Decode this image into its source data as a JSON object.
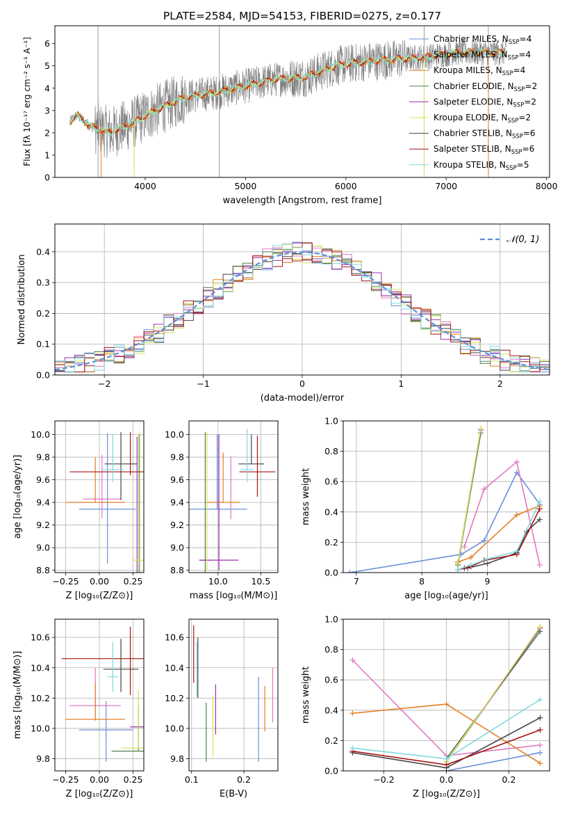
{
  "title": "PLATE=2584, MJD=54153, FIBERID=0275, z=0.177",
  "colors": {
    "data": "#808080",
    "chabrier_miles": "#6a8fd8",
    "salpeter_miles": "#e377c2",
    "kroupa_miles": "#e67e22",
    "chabrier_elodie": "#4c7f4c",
    "salpeter_elodie": "#9b2fae",
    "kroupa_elodie": "#d4e157",
    "chabrier_stelib": "#444444",
    "salpeter_stelib": "#a31515",
    "kroupa_stelib": "#80d8e0"
  },
  "legend_entries": [
    {
      "base": "Chabrier MILES, N",
      "sub": "SSP",
      "tail": "=4",
      "color": "#6a8fd8"
    },
    {
      "base": "Salpeter MILES, N",
      "sub": "SSP",
      "tail": "=4",
      "color": "#e377c2"
    },
    {
      "base": "Kroupa MILES, N",
      "sub": "SSP",
      "tail": "=4",
      "color": "#e67e22"
    },
    {
      "base": "Chabrier ELODIE, N",
      "sub": "SSP",
      "tail": "=2",
      "color": "#4c7f4c"
    },
    {
      "base": "Salpeter ELODIE, N",
      "sub": "SSP",
      "tail": "=2",
      "color": "#9b2fae"
    },
    {
      "base": "Kroupa ELODIE, N",
      "sub": "SSP",
      "tail": "=2",
      "color": "#d4e157"
    },
    {
      "base": "Chabrier STELIB, N",
      "sub": "SSP",
      "tail": "=6",
      "color": "#444444"
    },
    {
      "base": "Salpeter STELIB, N",
      "sub": "SSP",
      "tail": "=6",
      "color": "#a31515"
    },
    {
      "base": "Kroupa STELIB, N",
      "sub": "SSP",
      "tail": "=5",
      "color": "#80d8e0"
    }
  ],
  "chart_data": [
    {
      "id": "spectrum",
      "type": "line",
      "xlabel": "wavelength [Angstrom, rest frame]",
      "ylabel": "Flux [fλ 10⁻¹⁷ erg cm⁻² s⁻¹ A⁻¹]",
      "xlim": [
        3100,
        8030
      ],
      "ylim": [
        0,
        6.8
      ],
      "xticks": [
        4000,
        5000,
        6000,
        7000,
        8000
      ],
      "yticks": [
        0,
        1,
        2,
        3,
        4,
        5,
        6
      ],
      "continuum": {
        "x": [
          3250,
          3320,
          3450,
          3650,
          3900,
          4100,
          4400,
          4700,
          5000,
          5300,
          5600,
          5900,
          6200,
          6500,
          6800,
          7100,
          7400,
          7600
        ],
        "y": [
          2.5,
          2.8,
          2.3,
          2.0,
          2.5,
          3.0,
          3.6,
          3.8,
          4.1,
          4.4,
          4.5,
          5.0,
          5.2,
          5.3,
          5.4,
          5.6,
          5.6,
          5.6
        ]
      }
    },
    {
      "id": "residuals",
      "type": "histogram",
      "xlabel": "(data-model)/error",
      "ylabel": "Normed distribution",
      "xlim": [
        -2.5,
        2.5
      ],
      "ylim": [
        0,
        0.49
      ],
      "xticks": [
        -2,
        -1,
        0,
        1,
        2
      ],
      "yticks": [
        0.0,
        0.1,
        0.2,
        0.3,
        0.4
      ],
      "legend": "𝒩(0, 1)",
      "gaussian": {
        "mean": 0,
        "sigma": 1
      }
    },
    {
      "id": "z_age",
      "type": "errorbar",
      "xlabel": "Z [log₁₀(Z/Z⊙)]",
      "ylabel": "age  [log₁₀(age/yr)]",
      "xlim": [
        -0.33,
        0.33
      ],
      "ylim": [
        8.78,
        10.12
      ],
      "xticks": [
        -0.25,
        0.0,
        0.25
      ],
      "yticks": [
        8.8,
        9.0,
        9.2,
        9.4,
        9.6,
        9.8,
        10.0
      ],
      "points": [
        {
          "color": "#6a8fd8",
          "x": 0.06,
          "y": 9.34,
          "xerr": 0.21,
          "yerr": [
            0.48,
            0.67
          ]
        },
        {
          "color": "#e377c2",
          "x": 0.02,
          "y": 9.43,
          "xerr": 0.14,
          "yerr": [
            0.17,
            0.39
          ]
        },
        {
          "color": "#e67e22",
          "x": -0.03,
          "y": 9.4,
          "xerr": 0.22,
          "yerr": [
            0.0,
            0.4
          ]
        },
        {
          "color": "#4c7f4c",
          "x": 0.295,
          "y": 8.89,
          "xerr": 0.0,
          "yerr": [
            0.11,
            1.11
          ]
        },
        {
          "color": "#9b2fae",
          "x": 0.28,
          "y": 8.89,
          "xerr": 0.0,
          "yerr": [
            0.11,
            1.09
          ]
        },
        {
          "color": "#d4e157",
          "x": 0.3,
          "y": 8.89,
          "xerr": 0.05,
          "yerr": [
            0.11,
            1.13
          ]
        },
        {
          "color": "#444444",
          "x": 0.16,
          "y": 9.74,
          "xerr": 0.12,
          "yerr": [
            0.32,
            0.28
          ]
        },
        {
          "color": "#a31515",
          "x": 0.23,
          "y": 9.67,
          "xerr": 0.45,
          "yerr": [
            0.03,
            0.35
          ]
        },
        {
          "color": "#80d8e0",
          "x": 0.1,
          "y": 9.69,
          "xerr": 0.08,
          "yerr": [
            0.11,
            0.31
          ]
        }
      ]
    },
    {
      "id": "mass_age",
      "type": "errorbar",
      "xlabel": "mass [log₁₀(M/M⊙)]",
      "ylabel": "",
      "xlim": [
        9.66,
        10.7
      ],
      "ylim": [
        8.78,
        10.12
      ],
      "xticks": [
        10.0,
        10.5
      ],
      "yticks": [
        8.8,
        9.0,
        9.2,
        9.4,
        9.6,
        9.8,
        10.0
      ],
      "points": [
        {
          "color": "#6a8fd8",
          "x": 9.99,
          "y": 9.34,
          "xerr": 0.35,
          "yerr": [
            0.0,
            0.66
          ]
        },
        {
          "color": "#e377c2",
          "x": 10.15,
          "y": 9.43,
          "xerr": 0.0,
          "yerr": [
            0.18,
            0.38
          ]
        },
        {
          "color": "#e67e22",
          "x": 10.06,
          "y": 9.4,
          "xerr": 0.2,
          "yerr": [
            0.0,
            0.44
          ]
        },
        {
          "color": "#4c7f4c",
          "x": 9.85,
          "y": 8.89,
          "xerr": 0.07,
          "yerr": [
            0.11,
            1.13
          ]
        },
        {
          "color": "#9b2fae",
          "x": 10.01,
          "y": 8.89,
          "xerr": 0.23,
          "yerr": [
            0.09,
            1.11
          ]
        },
        {
          "color": "#d4e157",
          "x": 9.87,
          "y": 8.89,
          "xerr": 0.0,
          "yerr": [
            0.09,
            1.13
          ]
        },
        {
          "color": "#444444",
          "x": 10.39,
          "y": 9.74,
          "xerr": 0.15,
          "yerr": [
            0.0,
            0.26
          ]
        },
        {
          "color": "#a31515",
          "x": 10.46,
          "y": 9.67,
          "xerr": 0.21,
          "yerr": [
            0.22,
            0.32
          ]
        },
        {
          "color": "#80d8e0",
          "x": 10.34,
          "y": 9.69,
          "xerr": 0.08,
          "yerr": [
            0.11,
            0.36
          ]
        }
      ]
    },
    {
      "id": "age_weight",
      "type": "line",
      "xlabel": "age  [log₁₀(age/yr)]",
      "ylabel": "mass weight",
      "xlim": [
        6.8,
        9.95
      ],
      "ylim": [
        0,
        1.0
      ],
      "xticks": [
        7,
        8,
        9
      ],
      "yticks": [
        0.0,
        0.2,
        0.4,
        0.6,
        0.8,
        1.0
      ],
      "series": [
        {
          "color": "#6a8fd8",
          "x": [
            6.9,
            8.6,
            8.95,
            9.45,
            9.8
          ],
          "y": [
            0.0,
            0.12,
            0.21,
            0.66,
            0.45
          ]
        },
        {
          "color": "#e377c2",
          "x": [
            8.65,
            8.95,
            9.45,
            9.8
          ],
          "y": [
            0.17,
            0.55,
            0.73,
            0.05
          ]
        },
        {
          "color": "#e67e22",
          "x": [
            8.55,
            8.75,
            9.45,
            9.8
          ],
          "y": [
            0.07,
            0.1,
            0.38,
            0.44
          ]
        },
        {
          "color": "#4c7f4c",
          "x": [
            8.55,
            8.9
          ],
          "y": [
            0.05,
            0.92
          ]
        },
        {
          "color": "#9b2fae",
          "x": [
            8.55,
            8.9
          ],
          "y": [
            0.06,
            0.94
          ]
        },
        {
          "color": "#d4e157",
          "x": [
            8.55,
            8.9
          ],
          "y": [
            0.06,
            0.95
          ]
        },
        {
          "color": "#444444",
          "x": [
            8.55,
            8.7,
            9.0,
            9.45,
            9.6,
            9.8
          ],
          "y": [
            0.02,
            0.03,
            0.06,
            0.13,
            0.27,
            0.35
          ]
        },
        {
          "color": "#a31515",
          "x": [
            8.55,
            8.65,
            8.75,
            8.95,
            9.45,
            9.8
          ],
          "y": [
            0.02,
            0.03,
            0.04,
            0.08,
            0.12,
            0.42
          ]
        },
        {
          "color": "#80d8e0",
          "x": [
            8.55,
            8.75,
            9.0,
            9.45,
            9.8
          ],
          "y": [
            0.02,
            0.05,
            0.09,
            0.14,
            0.47
          ]
        }
      ]
    },
    {
      "id": "z_mass",
      "type": "errorbar",
      "xlabel": "Z [log₁₀(Z/Z⊙)]",
      "ylabel": "mass [log₁₀(M/M⊙)]",
      "xlim": [
        -0.33,
        0.33
      ],
      "ylim": [
        9.72,
        10.72
      ],
      "xticks": [
        -0.25,
        0.0,
        0.25
      ],
      "yticks": [
        9.8,
        10.0,
        10.2,
        10.4,
        10.6
      ],
      "points": [
        {
          "color": "#6a8fd8",
          "x": 0.05,
          "y": 9.99,
          "xerr": 0.2,
          "yerr": [
            0.21,
            0.19
          ]
        },
        {
          "color": "#e377c2",
          "x": -0.03,
          "y": 10.15,
          "xerr": 0.19,
          "yerr": [
            0.1,
            0.25
          ]
        },
        {
          "color": "#e67e22",
          "x": -0.03,
          "y": 10.06,
          "xerr": 0.22,
          "yerr": [
            0.0,
            0.24
          ]
        },
        {
          "color": "#4c7f4c",
          "x": 0.29,
          "y": 9.85,
          "xerr": 0.2,
          "yerr": [
            0.0,
            0.3
          ]
        },
        {
          "color": "#9b2fae",
          "x": 0.28,
          "y": 10.01,
          "xerr": 0.05,
          "yerr": [
            0.0,
            0.0
          ]
        },
        {
          "color": "#d4e157",
          "x": 0.29,
          "y": 9.87,
          "xerr": 0.13,
          "yerr": [
            0.0,
            0.38
          ]
        },
        {
          "color": "#444444",
          "x": 0.16,
          "y": 10.39,
          "xerr": 0.13,
          "yerr": [
            0.15,
            0.2
          ]
        },
        {
          "color": "#a31515",
          "x": 0.23,
          "y": 10.46,
          "xerr": 0.51,
          "yerr": [
            0.24,
            0.21
          ]
        },
        {
          "color": "#80d8e0",
          "x": 0.1,
          "y": 10.34,
          "xerr": 0.04,
          "yerr": [
            0.1,
            0.23
          ]
        }
      ]
    },
    {
      "id": "ebv_mass",
      "type": "errorbar",
      "xlabel": "E(B-V)",
      "ylabel": "",
      "xlim": [
        0.095,
        0.265
      ],
      "ylim": [
        9.72,
        10.72
      ],
      "xticks": [
        0.1,
        0.2
      ],
      "yticks": [
        9.8,
        10.0,
        10.2,
        10.4,
        10.6
      ],
      "points": [
        {
          "color": "#6a8fd8",
          "x": 0.228,
          "y": 10.0,
          "xerr": 0.0,
          "yerr": [
            0.22,
            0.34
          ]
        },
        {
          "color": "#e377c2",
          "x": 0.255,
          "y": 10.2,
          "xerr": 0.0,
          "yerr": [
            0.16,
            0.2
          ]
        },
        {
          "color": "#e67e22",
          "x": 0.24,
          "y": 10.15,
          "xerr": 0.0,
          "yerr": [
            0.17,
            0.13
          ]
        },
        {
          "color": "#4c7f4c",
          "x": 0.128,
          "y": 9.97,
          "xerr": 0.0,
          "yerr": [
            0.19,
            0.2
          ]
        },
        {
          "color": "#9b2fae",
          "x": 0.146,
          "y": 10.12,
          "xerr": 0.0,
          "yerr": [
            0.16,
            0.17
          ]
        },
        {
          "color": "#d4e157",
          "x": 0.141,
          "y": 10.01,
          "xerr": 0.0,
          "yerr": [
            0.2,
            0.21
          ]
        },
        {
          "color": "#444444",
          "x": 0.112,
          "y": 10.4,
          "xerr": 0.0,
          "yerr": [
            0.2,
            0.2
          ]
        },
        {
          "color": "#a31515",
          "x": 0.104,
          "y": 10.48,
          "xerr": 0.0,
          "yerr": [
            0.18,
            0.2
          ]
        },
        {
          "color": "#80d8e0",
          "x": 0.11,
          "y": 10.34,
          "xerr": 0.0,
          "yerr": [
            0.13,
            0.23
          ]
        }
      ]
    },
    {
      "id": "z_weight",
      "type": "line",
      "xlabel": "Z [log₁₀(Z/Z⊙)]",
      "ylabel": "mass weight",
      "xlim": [
        -0.33,
        0.33
      ],
      "ylim": [
        0,
        1.0
      ],
      "xticks": [
        -0.2,
        0.0,
        0.2
      ],
      "yticks": [
        0.0,
        0.2,
        0.4,
        0.6,
        0.8,
        1.0
      ],
      "series": [
        {
          "color": "#6a8fd8",
          "x": [
            0.0,
            0.3
          ],
          "y": [
            0.0,
            0.12
          ]
        },
        {
          "color": "#e377c2",
          "x": [
            -0.3,
            0.0,
            0.3
          ],
          "y": [
            0.73,
            0.1,
            0.17
          ]
        },
        {
          "color": "#e67e22",
          "x": [
            -0.3,
            0.0,
            0.3
          ],
          "y": [
            0.38,
            0.44,
            0.05
          ]
        },
        {
          "color": "#4c7f4c",
          "x": [
            0.0,
            0.3
          ],
          "y": [
            0.08,
            0.92
          ]
        },
        {
          "color": "#9b2fae",
          "x": [
            0.0,
            0.3
          ],
          "y": [
            0.06,
            0.94
          ]
        },
        {
          "color": "#d4e157",
          "x": [
            0.0,
            0.3
          ],
          "y": [
            0.06,
            0.95
          ]
        },
        {
          "color": "#444444",
          "x": [
            -0.3,
            0.0,
            0.3
          ],
          "y": [
            0.12,
            0.02,
            0.35
          ]
        },
        {
          "color": "#a31515",
          "x": [
            -0.3,
            0.0,
            0.3
          ],
          "y": [
            0.13,
            0.04,
            0.27
          ]
        },
        {
          "color": "#80d8e0",
          "x": [
            -0.3,
            0.0,
            0.3
          ],
          "y": [
            0.15,
            0.08,
            0.47
          ]
        }
      ]
    }
  ]
}
